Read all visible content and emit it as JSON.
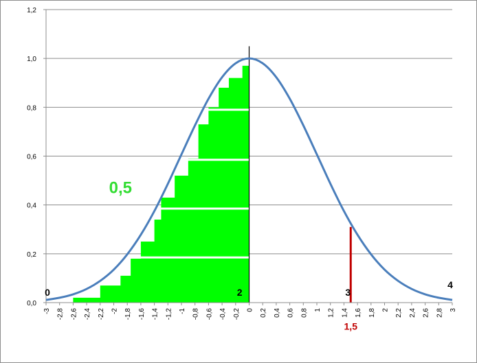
{
  "chart_data": {
    "type": "line",
    "title": "",
    "xlabel": "",
    "ylabel": "",
    "xlim": [
      -3,
      3
    ],
    "ylim": [
      0,
      1.2
    ],
    "grid": "horizontal",
    "x_tick_labels": [
      "-3",
      "-2,8",
      "-2,6",
      "-2,4",
      "-2,2",
      "-2",
      "-1,8",
      "-1,6",
      "-1,4",
      "-1,2",
      "-1",
      "-0,8",
      "-0,6",
      "-0,4",
      "-0,2",
      "0",
      "0,2",
      "0,4",
      "0,6",
      "0,8",
      "1",
      "1,2",
      "1,4",
      "1,6",
      "1,8",
      "2",
      "2,2",
      "2,4",
      "2,6",
      "2,8",
      "3"
    ],
    "y_tick_labels": [
      "0,0",
      "0,2",
      "0,4",
      "0,6",
      "0,8",
      "1,0",
      "1,2"
    ],
    "series": [
      {
        "color": "#4a7ebb",
        "x": [
          -3,
          -2.8,
          -2.6,
          -2.4,
          -2.2,
          -2,
          -1.8,
          -1.6,
          -1.4,
          -1.2,
          -1,
          -0.8,
          -0.6,
          -0.4,
          -0.2,
          0,
          0.2,
          0.4,
          0.6,
          0.8,
          1,
          1.2,
          1.4,
          1.6,
          1.8,
          2,
          2.2,
          2.4,
          2.6,
          2.8,
          3
        ],
        "y": [
          0.011,
          0.02,
          0.034,
          0.056,
          0.089,
          0.135,
          0.198,
          0.278,
          0.375,
          0.487,
          0.607,
          0.726,
          0.835,
          0.923,
          0.98,
          1.0,
          0.98,
          0.923,
          0.835,
          0.726,
          0.607,
          0.487,
          0.375,
          0.278,
          0.198,
          0.135,
          0.089,
          0.056,
          0.034,
          0.02,
          0.011
        ]
      }
    ],
    "shaded_region": {
      "color": "#00ff00",
      "x_from": -2.6,
      "x_to": 0,
      "steps": [
        {
          "x": -2.6,
          "y": 0.02
        },
        {
          "x": -2.2,
          "y": 0.07
        },
        {
          "x": -1.9,
          "y": 0.11
        },
        {
          "x": -1.75,
          "y": 0.18
        },
        {
          "x": -1.6,
          "y": 0.25
        },
        {
          "x": -1.4,
          "y": 0.34
        },
        {
          "x": -1.3,
          "y": 0.43
        },
        {
          "x": -1.1,
          "y": 0.52
        },
        {
          "x": -0.9,
          "y": 0.59
        },
        {
          "x": -0.75,
          "y": 0.73
        },
        {
          "x": -0.6,
          "y": 0.8
        },
        {
          "x": -0.45,
          "y": 0.88
        },
        {
          "x": -0.3,
          "y": 0.92
        },
        {
          "x": -0.1,
          "y": 0.97
        }
      ],
      "gap_levels": [
        0.185,
        0.385,
        0.585,
        0.79
      ]
    },
    "vertical_lines": [
      {
        "x": 0,
        "y_from": 0,
        "y_to": 1.05,
        "color": "#000000"
      },
      {
        "x": 1.5,
        "y_from": 0,
        "y_to": 0.31,
        "color": "#c00000"
      }
    ],
    "annotations": [
      {
        "text": "0",
        "x": -2.98,
        "y": 0.04,
        "color": "#000000",
        "size": "14"
      },
      {
        "text": "0,5",
        "x": -1.9,
        "y": 0.46,
        "color": "#33dd33",
        "size": "24"
      },
      {
        "text": "2",
        "x": -0.14,
        "y": 0.04,
        "color": "#000000",
        "size": "14"
      },
      {
        "text": "3",
        "x": 1.46,
        "y": 0.04,
        "color": "#000000",
        "size": "14"
      },
      {
        "text": "1,5",
        "x": 1.5,
        "y": -0.1,
        "color": "#c00000",
        "size": "14"
      },
      {
        "text": "4",
        "x": 2.97,
        "y": 0.07,
        "color": "#000000",
        "size": "14"
      }
    ]
  }
}
